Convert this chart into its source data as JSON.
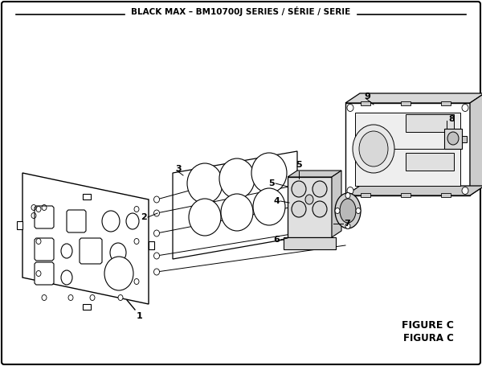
{
  "title": "BLACK MAX – BM10700J SERIES / SÉRIE / SERIE",
  "bg_color": "#ffffff",
  "border_color": "#000000",
  "figure_label": "FIGURE C",
  "figura_label": "FIGURA C"
}
